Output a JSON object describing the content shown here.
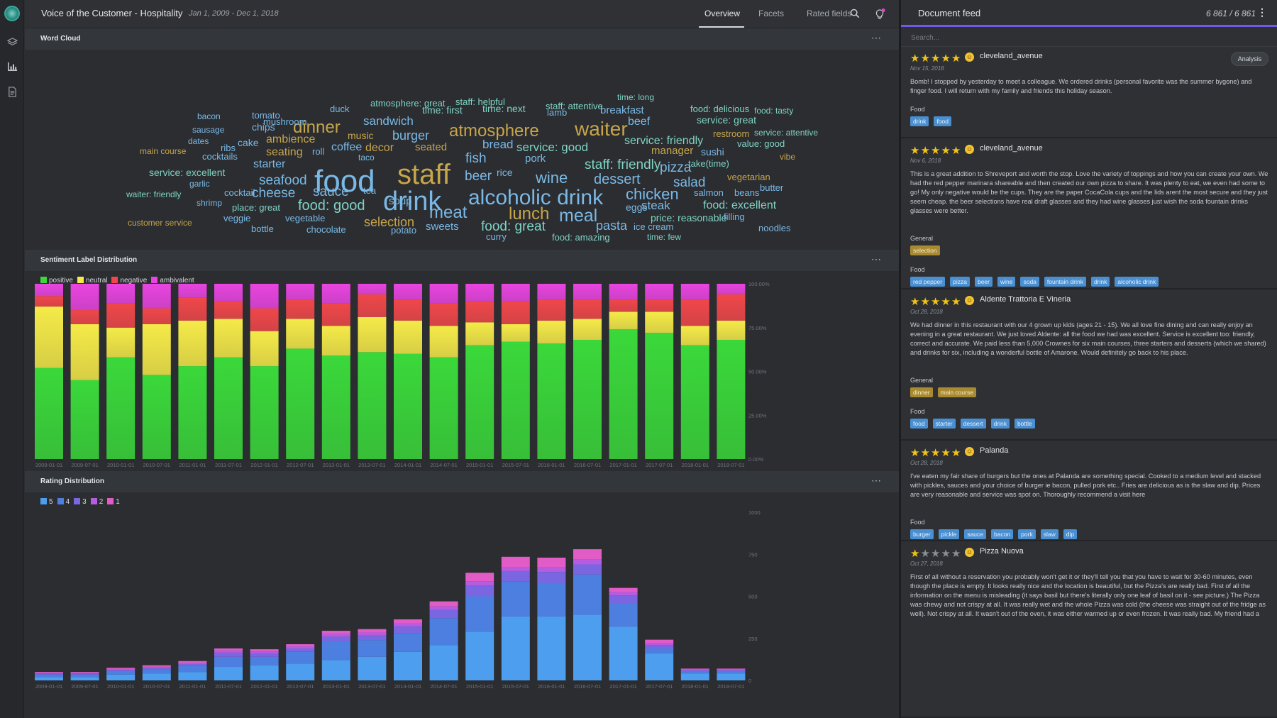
{
  "app": {
    "title": "Voice of the Customer - Hospitality",
    "date_range": "Jan 1, 2009 - Dec 1, 2018",
    "tabs": [
      "Overview",
      "Facets",
      "Rated fields"
    ],
    "active_tab": "Overview",
    "colors": {
      "accent": "#6c5ce7",
      "tag_blue": "#4a8fd1",
      "tag_gold": "#a98a30",
      "star": "#f0c419"
    }
  },
  "panels": {
    "word_cloud": {
      "title": "Word Cloud",
      "more": "⋯"
    },
    "sentiment": {
      "title": "Sentiment Label Distribution",
      "more": "⋯"
    },
    "rating": {
      "title": "Rating Distribution",
      "more": "⋯"
    }
  },
  "word_cloud": {
    "colors": {
      "blue": "#7ab9e6",
      "gold": "#c7a54a",
      "teal": "#7fd3c4"
    },
    "words": [
      {
        "t": "food",
        "s": 44,
        "c": "blue"
      },
      {
        "t": "staff",
        "s": 40,
        "c": "gold"
      },
      {
        "t": "drink",
        "s": 38,
        "c": "blue"
      },
      {
        "t": "alcoholic drink",
        "s": 30,
        "c": "blue"
      },
      {
        "t": "waiter",
        "s": 28,
        "c": "gold"
      },
      {
        "t": "atmosphere",
        "s": 24,
        "c": "gold"
      },
      {
        "t": "dinner",
        "s": 24,
        "c": "gold"
      },
      {
        "t": "meat",
        "s": 24,
        "c": "blue"
      },
      {
        "t": "meal",
        "s": 25,
        "c": "blue"
      },
      {
        "t": "lunch",
        "s": 24,
        "c": "gold"
      },
      {
        "t": "chicken",
        "s": 22,
        "c": "blue"
      },
      {
        "t": "wine",
        "s": 22,
        "c": "blue"
      },
      {
        "t": "food: good",
        "s": 20,
        "c": "teal"
      },
      {
        "t": "staff: friendly",
        "s": 19,
        "c": "teal"
      },
      {
        "t": "food: great",
        "s": 19,
        "c": "teal"
      },
      {
        "t": "seafood",
        "s": 19,
        "c": "blue"
      },
      {
        "t": "cheese",
        "s": 19,
        "c": "blue"
      },
      {
        "t": "sauce",
        "s": 19,
        "c": "blue"
      },
      {
        "t": "dessert",
        "s": 20,
        "c": "blue"
      },
      {
        "t": "pizza",
        "s": 19,
        "c": "blue"
      },
      {
        "t": "salad",
        "s": 19,
        "c": "blue"
      },
      {
        "t": "burger",
        "s": 18,
        "c": "blue"
      },
      {
        "t": "fish",
        "s": 19,
        "c": "blue"
      },
      {
        "t": "beer",
        "s": 19,
        "c": "blue"
      },
      {
        "t": "selection",
        "s": 18,
        "c": "gold"
      },
      {
        "t": "pasta",
        "s": 18,
        "c": "blue"
      },
      {
        "t": "steak",
        "s": 17,
        "c": "blue"
      },
      {
        "t": "sandwich",
        "s": 17,
        "c": "blue"
      },
      {
        "t": "service: good",
        "s": 17,
        "c": "teal"
      },
      {
        "t": "food: excellent",
        "s": 16,
        "c": "teal"
      },
      {
        "t": "service: friendly",
        "s": 16,
        "c": "teal"
      },
      {
        "t": "bread",
        "s": 17,
        "c": "blue"
      },
      {
        "t": "ambience",
        "s": 16,
        "c": "gold"
      },
      {
        "t": "seating",
        "s": 16,
        "c": "gold"
      },
      {
        "t": "decor",
        "s": 16,
        "c": "gold"
      },
      {
        "t": "coffee",
        "s": 16,
        "c": "blue"
      },
      {
        "t": "starter",
        "s": 16,
        "c": "blue"
      },
      {
        "t": "beef",
        "s": 16,
        "c": "blue"
      },
      {
        "t": "breakfast",
        "s": 15,
        "c": "blue"
      },
      {
        "t": "manager",
        "s": 15,
        "c": "gold"
      },
      {
        "t": "sweets",
        "s": 15,
        "c": "blue"
      },
      {
        "t": "seated",
        "s": 15,
        "c": "gold"
      },
      {
        "t": "pork",
        "s": 15,
        "c": "blue"
      },
      {
        "t": "soup",
        "s": 15,
        "c": "blue"
      },
      {
        "t": "service: excellent",
        "s": 14,
        "c": "teal"
      },
      {
        "t": "food: delicious",
        "s": 13,
        "c": "teal"
      },
      {
        "t": "service: great",
        "s": 14,
        "c": "teal"
      },
      {
        "t": "value: good",
        "s": 13,
        "c": "teal"
      },
      {
        "t": "price: reasonable",
        "s": 14,
        "c": "teal"
      },
      {
        "t": "food: amazing",
        "s": 13,
        "c": "teal"
      },
      {
        "t": "atmosphere: great",
        "s": 13,
        "c": "teal"
      },
      {
        "t": "staff: helpful",
        "s": 13,
        "c": "teal"
      },
      {
        "t": "staff: attentive",
        "s": 13,
        "c": "teal"
      },
      {
        "t": "time: first",
        "s": 14,
        "c": "teal"
      },
      {
        "t": "time: next",
        "s": 14,
        "c": "teal"
      },
      {
        "t": "place: great",
        "s": 13,
        "c": "teal"
      },
      {
        "t": "take(time)",
        "s": 13,
        "c": "teal"
      },
      {
        "t": "eggs",
        "s": 14,
        "c": "blue"
      },
      {
        "t": "sushi",
        "s": 14,
        "c": "blue"
      },
      {
        "t": "music",
        "s": 14,
        "c": "gold"
      },
      {
        "t": "restroom",
        "s": 13,
        "c": "gold"
      },
      {
        "t": "vegetarian",
        "s": 13,
        "c": "gold"
      },
      {
        "t": "chips",
        "s": 14,
        "c": "blue"
      },
      {
        "t": "cake",
        "s": 14,
        "c": "blue"
      },
      {
        "t": "tomato",
        "s": 13,
        "c": "blue"
      },
      {
        "t": "mushroom",
        "s": 13,
        "c": "blue"
      },
      {
        "t": "rice",
        "s": 14,
        "c": "blue"
      },
      {
        "t": "cocktails",
        "s": 13,
        "c": "blue"
      },
      {
        "t": "vegetable",
        "s": 13,
        "c": "blue"
      },
      {
        "t": "chocolate",
        "s": 13,
        "c": "blue"
      },
      {
        "t": "potato",
        "s": 13,
        "c": "blue"
      },
      {
        "t": "bottle",
        "s": 13,
        "c": "blue"
      },
      {
        "t": "lamb",
        "s": 13,
        "c": "blue"
      },
      {
        "t": "salmon",
        "s": 13,
        "c": "blue"
      },
      {
        "t": "roll",
        "s": 13,
        "c": "blue"
      },
      {
        "t": "beans",
        "s": 13,
        "c": "blue"
      },
      {
        "t": "butter",
        "s": 13,
        "c": "blue"
      },
      {
        "t": "ice cream",
        "s": 13,
        "c": "blue"
      },
      {
        "t": "filling",
        "s": 13,
        "c": "blue"
      },
      {
        "t": "noodles",
        "s": 13,
        "c": "blue"
      },
      {
        "t": "curry",
        "s": 13,
        "c": "blue"
      },
      {
        "t": "tea",
        "s": 13,
        "c": "blue"
      },
      {
        "t": "taco",
        "s": 12,
        "c": "blue"
      },
      {
        "t": "duck",
        "s": 13,
        "c": "blue"
      },
      {
        "t": "ribs",
        "s": 13,
        "c": "blue"
      },
      {
        "t": "dates",
        "s": 12,
        "c": "blue"
      },
      {
        "t": "bacon",
        "s": 12,
        "c": "blue"
      },
      {
        "t": "sausage",
        "s": 12,
        "c": "blue"
      },
      {
        "t": "garlic",
        "s": 12,
        "c": "blue"
      },
      {
        "t": "shrimp",
        "s": 12,
        "c": "blue"
      },
      {
        "t": "veggie",
        "s": 13,
        "c": "blue"
      },
      {
        "t": "cocktail",
        "s": 13,
        "c": "blue"
      },
      {
        "t": "vibe",
        "s": 12,
        "c": "gold"
      },
      {
        "t": "main course",
        "s": 12,
        "c": "gold"
      },
      {
        "t": "customer service",
        "s": 12,
        "c": "gold"
      },
      {
        "t": "waiter: friendly",
        "s": 12,
        "c": "teal"
      },
      {
        "t": "time: long",
        "s": 12,
        "c": "teal"
      },
      {
        "t": "time: few",
        "s": 12,
        "c": "teal"
      },
      {
        "t": "food: tasty",
        "s": 12,
        "c": "teal"
      },
      {
        "t": "service: attentive",
        "s": 12,
        "c": "teal"
      }
    ]
  },
  "chart_data": [
    {
      "type": "bar",
      "stacked": true,
      "normalized": true,
      "title": "Sentiment Label Distribution",
      "categories": [
        "2009-01-01",
        "2009-07-01",
        "2010-01-01",
        "2010-07-01",
        "2011-01-01",
        "2011-07-01",
        "2012-01-01",
        "2012-07-01",
        "2013-01-01",
        "2013-07-01",
        "2014-01-01",
        "2014-07-01",
        "2015-01-01",
        "2015-07-01",
        "2016-01-01",
        "2016-07-01",
        "2017-01-01",
        "2017-07-01",
        "2018-01-01",
        "2018-07-01"
      ],
      "ytick_labels": [
        "0.00%",
        "25.00%",
        "50.00%",
        "75.00%",
        "100.00%"
      ],
      "ylim": [
        0,
        100
      ],
      "legend": "top-left",
      "series": [
        {
          "name": "positive",
          "color": "#3ad83a",
          "values": [
            52,
            45,
            58,
            48,
            53,
            58,
            53,
            63,
            59,
            61,
            60,
            58,
            65,
            67,
            66,
            68,
            74,
            72,
            65,
            68
          ]
        },
        {
          "name": "neutral",
          "color": "#f5ea48",
          "values": [
            35,
            32,
            17,
            29,
            26,
            22,
            20,
            17,
            17,
            20,
            19,
            18,
            13,
            10,
            13,
            12,
            10,
            12,
            11,
            11
          ]
        },
        {
          "name": "negative",
          "color": "#f0474a",
          "values": [
            6,
            8,
            14,
            9,
            13,
            10,
            13,
            11,
            13,
            13,
            12,
            13,
            12,
            13,
            12,
            11,
            7,
            7,
            15,
            15
          ]
        },
        {
          "name": "ambivalent",
          "color": "#e944e0",
          "values": [
            7,
            15,
            11,
            14,
            8,
            10,
            14,
            9,
            11,
            6,
            9,
            11,
            10,
            10,
            9,
            9,
            9,
            9,
            9,
            6
          ]
        }
      ]
    },
    {
      "type": "bar",
      "stacked": true,
      "title": "Rating Distribution",
      "categories": [
        "2009-01-01",
        "2009-07-01",
        "2010-01-01",
        "2010-07-01",
        "2011-01-01",
        "2011-07-01",
        "2012-01-01",
        "2012-07-01",
        "2013-01-01",
        "2013-07-01",
        "2014-01-01",
        "2014-07-01",
        "2015-01-01",
        "2015-07-01",
        "2016-01-01",
        "2016-07-01",
        "2017-01-01",
        "2017-07-01",
        "2018-01-01",
        "2018-07-01"
      ],
      "ytick_labels": [
        "0",
        "250",
        "500",
        "750",
        "1000"
      ],
      "ylim": [
        0,
        1000
      ],
      "legend": "top-left",
      "series": [
        {
          "name": "5",
          "color": "#4e9ef0",
          "values": [
            20,
            20,
            35,
            40,
            50,
            80,
            90,
            100,
            120,
            140,
            170,
            210,
            290,
            380,
            380,
            390,
            320,
            160,
            40,
            40
          ]
        },
        {
          "name": "4",
          "color": "#4d7fe0",
          "values": [
            15,
            15,
            20,
            25,
            35,
            60,
            50,
            70,
            110,
            100,
            110,
            160,
            210,
            210,
            200,
            240,
            140,
            30,
            15,
            15
          ]
        },
        {
          "name": "3",
          "color": "#7a66e0",
          "values": [
            6,
            6,
            8,
            10,
            12,
            25,
            20,
            20,
            30,
            30,
            40,
            50,
            65,
            60,
            65,
            60,
            45,
            20,
            6,
            6
          ]
        },
        {
          "name": "2",
          "color": "#b55ce0",
          "values": [
            4,
            4,
            5,
            6,
            8,
            13,
            12,
            12,
            15,
            15,
            18,
            20,
            25,
            25,
            30,
            30,
            20,
            12,
            4,
            4
          ]
        },
        {
          "name": "1",
          "color": "#e25cc8",
          "values": [
            5,
            5,
            7,
            9,
            10,
            12,
            13,
            13,
            20,
            20,
            25,
            30,
            50,
            60,
            55,
            60,
            25,
            20,
            5,
            5
          ]
        }
      ]
    }
  ],
  "feed": {
    "title": "Document feed",
    "count": "6 861 / 6 861",
    "search_placeholder": "Search...",
    "analysis_label": "Analysis",
    "cards": [
      {
        "stars": 5,
        "user": "cleveland_avenue",
        "date": "Nov 15, 2018",
        "text": "Bomb! I stopped by yesterday to meet a colleague. We ordered drinks (personal favorite was the summer bygone) and finger food. I will return with my family and friends this holiday season.",
        "groups": [
          {
            "label": "Food",
            "color": "blue",
            "tags": [
              "drink",
              "food"
            ]
          }
        ]
      },
      {
        "stars": 5,
        "user": "cleveland_avenue",
        "date": "Nov 6, 2018",
        "text": "This is a great addition to Shreveport and worth the stop. Love the variety of toppings and how you can create your own. We had the red pepper marinara shareable and then created our own pizza to share. It was plenty to eat, we even had some to go! My only negative would be the cups. They are the paper CocaCola cups and the lids arent the most secure and they just seem cheap. the beer selections have real draft glasses and they had wine glasses just wish the soda fountain drinks glasses were better.",
        "groups": [
          {
            "label": "General",
            "color": "gold",
            "tags": [
              "selection"
            ]
          },
          {
            "label": "Food",
            "color": "blue",
            "tags": [
              "red pepper",
              "pizza",
              "beer",
              "wine",
              "soda",
              "fountain drink",
              "drink",
              "alcoholic drink"
            ]
          }
        ]
      },
      {
        "stars": 5,
        "user": "Aldente Trattoria E Vineria",
        "date": "Oct 28, 2018",
        "text": "We had dinner in this restaurant with our 4 grown up kids (ages 21 - 15). We all love fine dining and can really enjoy an evening in a great restaurant. We just loved Aldente: all the food we had was excellent. Service is excellent too: friendly, correct and accurate. We paid less than 5,000 Crownes for six main courses, three starters and desserts (which we shared) and drinks for six, including a wonderful bottle of Amarone. Would definitely go back to his place.",
        "groups": [
          {
            "label": "General",
            "color": "gold",
            "tags": [
              "dinner",
              "main course"
            ]
          },
          {
            "label": "Food",
            "color": "blue",
            "tags": [
              "food",
              "starter",
              "dessert",
              "drink",
              "bottle"
            ]
          }
        ]
      },
      {
        "stars": 5,
        "user": "Palanda",
        "date": "Oct 28, 2018",
        "text": "I've eaten my fair share of burgers but the ones at Palanda are something special. Cooked to a medium level and stacked with pickles, sauces and your choice of burger ie bacon, pulled pork etc.. Fries are delicious as is the slaw and dip. Prices are very reasonable and service was spot on. Thoroughly recommend a visit here",
        "groups": [
          {
            "label": "Food",
            "color": "blue",
            "tags": [
              "burger",
              "pickle",
              "sauce",
              "bacon",
              "pork",
              "slaw",
              "dip"
            ]
          }
        ]
      },
      {
        "stars": 1,
        "user": "Pizza Nuova",
        "date": "Oct 27, 2018",
        "text": "First of all without a reservation you probably won't get it or they'll tell you that you have to wait for 30-60 minutes, even though the place is empty. It looks really nice and the location is beautiful, but the Pizza's are really bad. First of all the information on the menu is misleading (it says basil but there's literally only one leaf of basil on it - see picture.) The Pizza was chewy and not crispy at all. It was really wet and the whole Pizza was cold (the cheese was straight out of the fridge as well). Not crispy at all. It wasn't out of the oven, it was either warmed up or even frozen. It was really bad. My friend had a Pizza cappriciosa (shrooms and ham) and it was the same thing. The...",
        "groups": []
      }
    ]
  }
}
